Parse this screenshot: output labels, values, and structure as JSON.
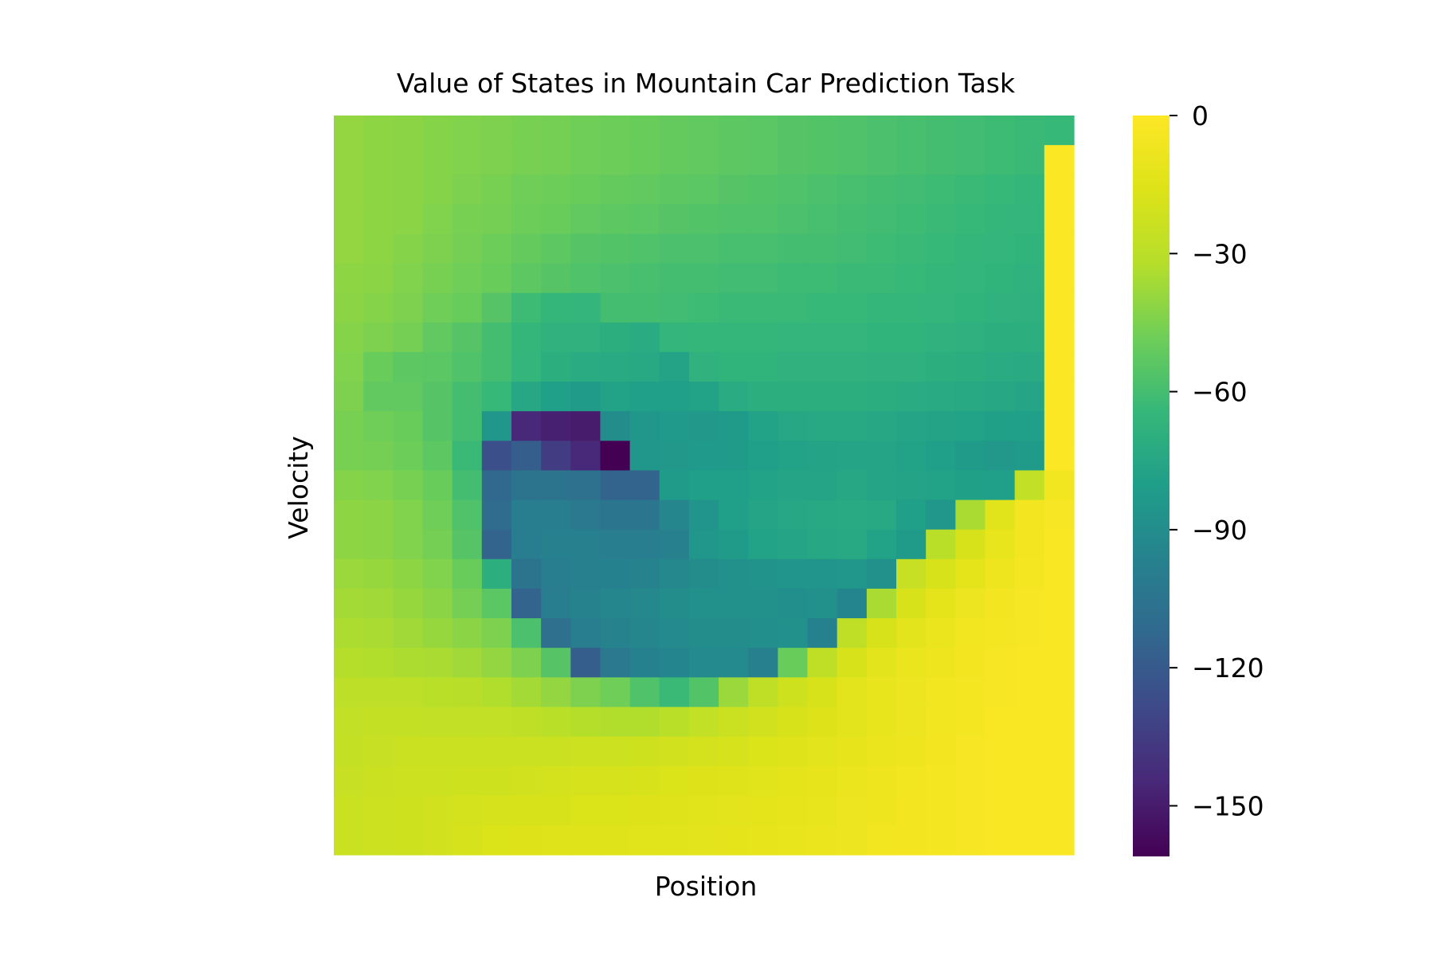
{
  "chart_data": {
    "type": "heatmap",
    "title": "Value of States in Mountain Car Prediction Task",
    "xlabel": "Position",
    "ylabel": "Velocity",
    "colormap": "viridis",
    "grid": false,
    "colorbar": {
      "vmin": -161,
      "vmax": 0,
      "ticks": [
        0,
        -30,
        -60,
        -90,
        -120,
        -150
      ],
      "tick_labels": [
        "0",
        "−30",
        "−60",
        "−90",
        "−120",
        "−150"
      ]
    },
    "values": [
      [
        -40,
        -41,
        -42,
        -43,
        -44,
        -45,
        -46,
        -47,
        -48,
        -49,
        -50,
        -51,
        -52,
        -53,
        -54,
        -55,
        -56,
        -57,
        -58,
        -59,
        -60,
        -61,
        -62,
        -63,
        -64
      ],
      [
        -40,
        -41,
        -42,
        -43,
        -44,
        -45,
        -46,
        -47,
        -48,
        -49,
        -50,
        -51,
        -52,
        -53,
        -54,
        -55,
        -56,
        -57,
        -58,
        -59,
        -60,
        -61,
        -62,
        -63,
        -1
      ],
      [
        -40,
        -41,
        -42,
        -43,
        -45,
        -46,
        -48,
        -49,
        -50,
        -51,
        -52,
        -53,
        -54,
        -55,
        -56,
        -57,
        -58,
        -59,
        -60,
        -61,
        -62,
        -63,
        -64,
        -65,
        -1
      ],
      [
        -40,
        -41,
        -42,
        -44,
        -46,
        -47,
        -49,
        -50,
        -52,
        -53,
        -54,
        -55,
        -56,
        -57,
        -57,
        -58,
        -59,
        -60,
        -61,
        -62,
        -63,
        -64,
        -65,
        -66,
        -1
      ],
      [
        -40,
        -41,
        -43,
        -45,
        -47,
        -49,
        -51,
        -53,
        -55,
        -56,
        -57,
        -58,
        -58,
        -59,
        -59,
        -60,
        -60,
        -61,
        -62,
        -63,
        -64,
        -65,
        -66,
        -67,
        -1
      ],
      [
        -41,
        -42,
        -44,
        -46,
        -48,
        -50,
        -53,
        -55,
        -57,
        -58,
        -59,
        -60,
        -60,
        -61,
        -61,
        -62,
        -62,
        -63,
        -63,
        -64,
        -65,
        -66,
        -67,
        -68,
        -1
      ],
      [
        -42,
        -43,
        -45,
        -48,
        -50,
        -55,
        -62,
        -65,
        -66,
        -60,
        -60,
        -61,
        -62,
        -63,
        -63,
        -63,
        -64,
        -64,
        -65,
        -65,
        -66,
        -67,
        -68,
        -69,
        -1
      ],
      [
        -43,
        -45,
        -47,
        -52,
        -55,
        -60,
        -65,
        -68,
        -68,
        -70,
        -72,
        -66,
        -65,
        -65,
        -65,
        -66,
        -66,
        -66,
        -67,
        -67,
        -68,
        -69,
        -70,
        -70,
        -1
      ],
      [
        -44,
        -50,
        -53,
        -54,
        -57,
        -60,
        -66,
        -70,
        -72,
        -73,
        -74,
        -77,
        -68,
        -67,
        -67,
        -68,
        -68,
        -68,
        -69,
        -69,
        -70,
        -71,
        -72,
        -73,
        -1
      ],
      [
        -45,
        -52,
        -52,
        -55,
        -60,
        -64,
        -75,
        -80,
        -82,
        -78,
        -80,
        -80,
        -78,
        -72,
        -70,
        -70,
        -70,
        -70,
        -71,
        -72,
        -73,
        -74,
        -75,
        -76,
        -1
      ],
      [
        -46,
        -48,
        -50,
        -55,
        -60,
        -85,
        -145,
        -148,
        -150,
        -90,
        -85,
        -83,
        -84,
        -82,
        -78,
        -75,
        -74,
        -74,
        -75,
        -76,
        -77,
        -78,
        -79,
        -80,
        -1
      ],
      [
        -46,
        -47,
        -49,
        -53,
        -63,
        -125,
        -118,
        -135,
        -145,
        -161,
        -85,
        -84,
        -83,
        -82,
        -80,
        -78,
        -77,
        -76,
        -76,
        -78,
        -80,
        -82,
        -84,
        -82,
        -1
      ],
      [
        -43,
        -44,
        -46,
        -50,
        -60,
        -112,
        -105,
        -105,
        -107,
        -115,
        -115,
        -82,
        -80,
        -80,
        -78,
        -76,
        -76,
        -75,
        -76,
        -77,
        -78,
        -79,
        -80,
        -27,
        -6
      ],
      [
        -41,
        -42,
        -44,
        -48,
        -57,
        -110,
        -100,
        -100,
        -102,
        -104,
        -104,
        -94,
        -86,
        -80,
        -76,
        -75,
        -74,
        -73,
        -74,
        -80,
        -85,
        -35,
        -14,
        -5,
        -3
      ],
      [
        -41,
        -42,
        -44,
        -47,
        -55,
        -115,
        -100,
        -98,
        -98,
        -100,
        -100,
        -98,
        -85,
        -82,
        -78,
        -76,
        -75,
        -74,
        -78,
        -82,
        -30,
        -18,
        -10,
        -5,
        -2
      ],
      [
        -38,
        -39,
        -41,
        -44,
        -50,
        -70,
        -105,
        -100,
        -98,
        -97,
        -96,
        -93,
        -90,
        -88,
        -87,
        -86,
        -86,
        -85,
        -88,
        -25,
        -18,
        -12,
        -7,
        -4,
        -2
      ],
      [
        -36,
        -37,
        -39,
        -42,
        -47,
        -54,
        -115,
        -100,
        -96,
        -94,
        -93,
        -90,
        -88,
        -88,
        -88,
        -89,
        -88,
        -95,
        -35,
        -18,
        -12,
        -8,
        -5,
        -3,
        -2
      ],
      [
        -34,
        -35,
        -37,
        -39,
        -42,
        -45,
        -58,
        -108,
        -100,
        -96,
        -94,
        -92,
        -90,
        -90,
        -89,
        -88,
        -97,
        -28,
        -18,
        -13,
        -9,
        -6,
        -4,
        -3,
        -2
      ],
      [
        -32,
        -33,
        -34,
        -35,
        -37,
        -40,
        -45,
        -55,
        -118,
        -102,
        -97,
        -95,
        -92,
        -92,
        -98,
        -50,
        -28,
        -18,
        -13,
        -9,
        -7,
        -5,
        -3,
        -2,
        -2
      ],
      [
        -29,
        -29,
        -29,
        -30,
        -31,
        -33,
        -36,
        -40,
        -45,
        -48,
        -57,
        -63,
        -56,
        -38,
        -28,
        -22,
        -18,
        -13,
        -10,
        -8,
        -6,
        -4,
        -3,
        -2,
        -2
      ],
      [
        -27,
        -26,
        -26,
        -27,
        -27,
        -27,
        -28,
        -30,
        -32,
        -33,
        -33,
        -30,
        -27,
        -24,
        -21,
        -18,
        -16,
        -13,
        -10,
        -8,
        -6,
        -4,
        -2,
        -2,
        -2
      ],
      [
        -26,
        -25,
        -24,
        -24,
        -24,
        -24,
        -24,
        -24,
        -23,
        -23,
        -22,
        -21,
        -20,
        -19,
        -17,
        -15,
        -13,
        -11,
        -9,
        -7,
        -5,
        -3,
        -2,
        -2,
        -2
      ],
      [
        -25,
        -24,
        -23,
        -23,
        -22,
        -22,
        -21,
        -20,
        -19,
        -19,
        -18,
        -17,
        -16,
        -15,
        -14,
        -12,
        -11,
        -9,
        -7,
        -6,
        -4,
        -3,
        -2,
        -2,
        -2
      ],
      [
        -24,
        -23,
        -22,
        -21,
        -20,
        -19,
        -18,
        -18,
        -17,
        -17,
        -16,
        -15,
        -14,
        -13,
        -12,
        -11,
        -10,
        -8,
        -7,
        -5,
        -4,
        -3,
        -2,
        -2,
        -2
      ],
      [
        -24,
        -23,
        -22,
        -21,
        -19,
        -17,
        -16,
        -15,
        -15,
        -15,
        -14,
        -14,
        -13,
        -12,
        -11,
        -10,
        -9,
        -8,
        -6,
        -5,
        -4,
        -3,
        -2,
        -2,
        -2
      ]
    ]
  }
}
